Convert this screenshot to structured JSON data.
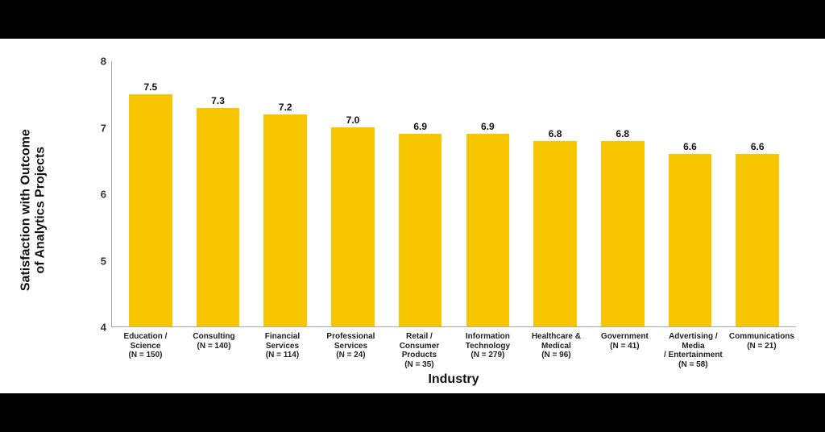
{
  "chart": {
    "type": "bar",
    "ylabel_line1": "Satisfaction with Outcome",
    "ylabel_line2": "of Analytics Projects",
    "xlabel": "Industry",
    "ylim": [
      4,
      8
    ],
    "ytick_step": 1,
    "bar_color": "#f7c600",
    "background_color": "#ffffff",
    "axis_color": "#aaaaaa",
    "text_color": "#111111",
    "label_fontsize": 16,
    "tick_fontsize": 13,
    "value_fontsize": 12,
    "category_fontsize": 10,
    "bar_width_ratio": 0.64,
    "categories": [
      {
        "label_line1": "Education / Science",
        "label_line2": "(N = 150)",
        "value": 7.5,
        "value_label": "7.5"
      },
      {
        "label_line1": "Consulting",
        "label_line2": "(N = 140)",
        "value": 7.3,
        "value_label": "7.3"
      },
      {
        "label_line1": "Financial Services",
        "label_line2": "(N = 114)",
        "value": 7.2,
        "value_label": "7.2"
      },
      {
        "label_line1": "Professional Services",
        "label_line2": "(N = 24)",
        "value": 7.0,
        "value_label": "7.0"
      },
      {
        "label_line1": "Retail / Consumer",
        "label_line2": "Products",
        "label_line3": "(N = 35)",
        "value": 6.9,
        "value_label": "6.9"
      },
      {
        "label_line1": "Information",
        "label_line2": "Technology",
        "label_line3": "(N = 279)",
        "value": 6.9,
        "value_label": "6.9"
      },
      {
        "label_line1": "Healthcare &",
        "label_line2": "Medical",
        "label_line3": "(N = 96)",
        "value": 6.8,
        "value_label": "6.8"
      },
      {
        "label_line1": "Government",
        "label_line2": "(N = 41)",
        "value": 6.8,
        "value_label": "6.8"
      },
      {
        "label_line1": "Advertising / Media",
        "label_line2": "/ Entertainment",
        "label_line3": "(N = 58)",
        "value": 6.6,
        "value_label": "6.6"
      },
      {
        "label_line1": "Communications",
        "label_line2": "(N = 21)",
        "value": 6.6,
        "value_label": "6.6"
      }
    ]
  },
  "layout": {
    "top_bar_height": 48,
    "bottom_bar_height": 48,
    "top_bar_color": "#000000",
    "bottom_bar_color": "#000000"
  }
}
